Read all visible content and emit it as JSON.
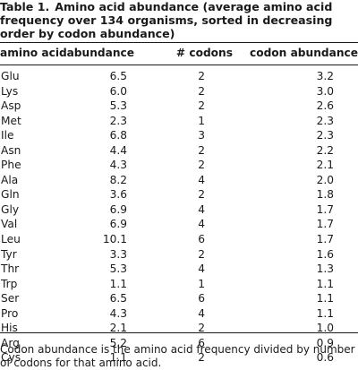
{
  "table": {
    "label": "Table 1.",
    "title": "Amino acid abundance (average amino acid frequency over 134 organisms, sorted in decreasing order by codon abundance)",
    "columns": [
      "amino acid",
      "abundance",
      "# codons",
      "codon abundance"
    ],
    "rows": [
      {
        "aa": "Glu",
        "abundance": "6.5",
        "codons": "2",
        "codon_abundance": "3.2"
      },
      {
        "aa": "Lys",
        "abundance": "6.0",
        "codons": "2",
        "codon_abundance": "3.0"
      },
      {
        "aa": "Asp",
        "abundance": "5.3",
        "codons": "2",
        "codon_abundance": "2.6"
      },
      {
        "aa": "Met",
        "abundance": "2.3",
        "codons": "1",
        "codon_abundance": "2.3"
      },
      {
        "aa": "Ile",
        "abundance": "6.8",
        "codons": "3",
        "codon_abundance": "2.3"
      },
      {
        "aa": "Asn",
        "abundance": "4.4",
        "codons": "2",
        "codon_abundance": "2.2"
      },
      {
        "aa": "Phe",
        "abundance": "4.3",
        "codons": "2",
        "codon_abundance": "2.1"
      },
      {
        "aa": "Ala",
        "abundance": "8.2",
        "codons": "4",
        "codon_abundance": "2.0"
      },
      {
        "aa": "Gln",
        "abundance": "3.6",
        "codons": "2",
        "codon_abundance": "1.8"
      },
      {
        "aa": "Gly",
        "abundance": "6.9",
        "codons": "4",
        "codon_abundance": "1.7"
      },
      {
        "aa": "Val",
        "abundance": "6.9",
        "codons": "4",
        "codon_abundance": "1.7"
      },
      {
        "aa": "Leu",
        "abundance": "10.1",
        "codons": "6",
        "codon_abundance": "1.7"
      },
      {
        "aa": "Tyr",
        "abundance": "3.3",
        "codons": "2",
        "codon_abundance": "1.6"
      },
      {
        "aa": "Thr",
        "abundance": "5.3",
        "codons": "4",
        "codon_abundance": "1.3"
      },
      {
        "aa": "Trp",
        "abundance": "1.1",
        "codons": "1",
        "codon_abundance": "1.1"
      },
      {
        "aa": "Ser",
        "abundance": "6.5",
        "codons": "6",
        "codon_abundance": "1.1"
      },
      {
        "aa": "Pro",
        "abundance": "4.3",
        "codons": "4",
        "codon_abundance": "1.1"
      },
      {
        "aa": "His",
        "abundance": "2.1",
        "codons": "2",
        "codon_abundance": "1.0"
      },
      {
        "aa": "Arg",
        "abundance": "5.2",
        "codons": "6",
        "codon_abundance": "0.9"
      },
      {
        "aa": "Cys",
        "abundance": "1.1",
        "codons": "2",
        "codon_abundance": "0.6"
      }
    ],
    "footnote": "Codon abundance is the amino acid frequency divided by number of codons for that amino acid."
  }
}
